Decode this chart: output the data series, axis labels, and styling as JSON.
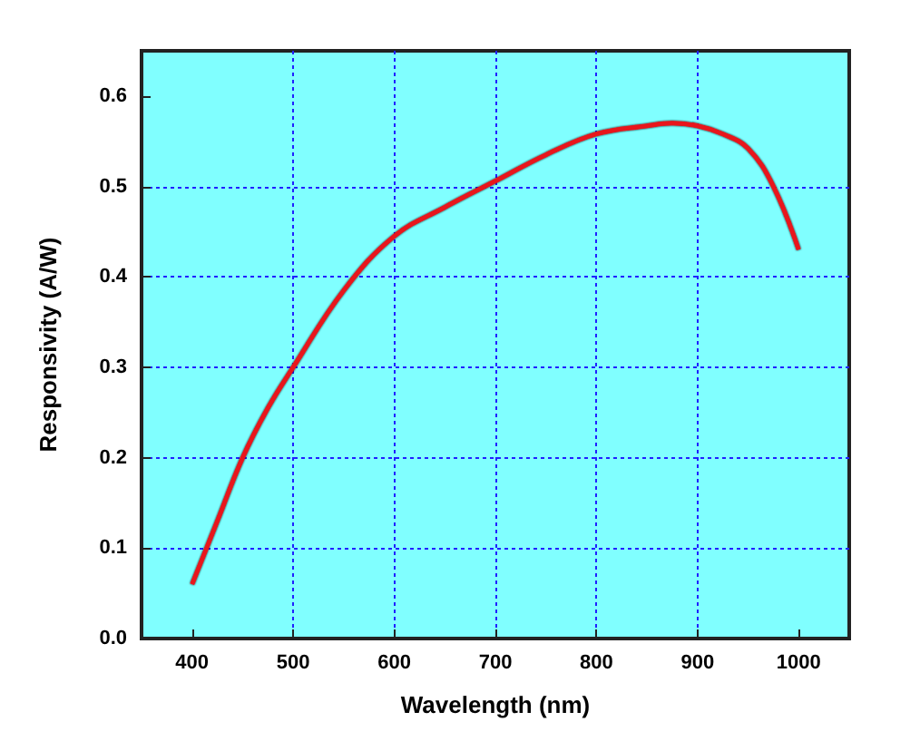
{
  "chart_data": {
    "type": "line",
    "xlabel": "Wavelength (nm)",
    "ylabel": "Responsivity (A/W)",
    "x": [
      400,
      425,
      450,
      475,
      500,
      550,
      600,
      650,
      700,
      750,
      800,
      850,
      875,
      900,
      925,
      950,
      975,
      1000
    ],
    "series": [
      {
        "color": "#e8141c",
        "values": [
          0.06,
          0.13,
          0.2,
          0.255,
          0.3,
          0.385,
          0.445,
          0.477,
          0.506,
          0.535,
          0.558,
          0.567,
          0.57,
          0.567,
          0.558,
          0.542,
          0.5,
          0.43
        ]
      }
    ],
    "xlim": [
      350,
      1050
    ],
    "xticks": [
      400,
      500,
      600,
      700,
      800,
      900,
      1000
    ],
    "ylim": [
      0,
      0.65
    ],
    "yticks": [
      "0.0",
      0.1,
      0.2,
      0.3,
      0.4,
      0.5,
      0.6
    ],
    "grid": true,
    "line_style": "solid",
    "marker": "none"
  }
}
